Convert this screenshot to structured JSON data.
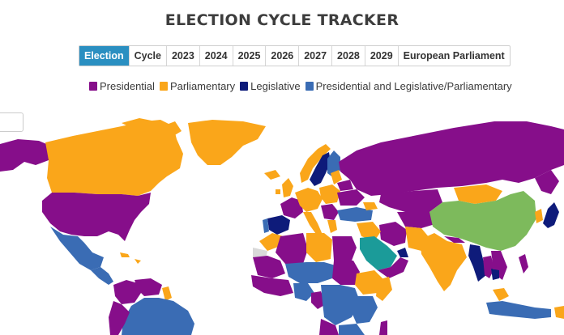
{
  "title": "ELECTION CYCLE TRACKER",
  "tabs": [
    {
      "label": "Election",
      "active": true
    },
    {
      "label": "Cycle",
      "active": false
    },
    {
      "label": "2023",
      "active": false
    },
    {
      "label": "2024",
      "active": false
    },
    {
      "label": "2025",
      "active": false
    },
    {
      "label": "2026",
      "active": false
    },
    {
      "label": "2027",
      "active": false
    },
    {
      "label": "2028",
      "active": false
    },
    {
      "label": "2029",
      "active": false
    },
    {
      "label": "European Parliament",
      "active": false
    }
  ],
  "legend": [
    {
      "label": "Presidential",
      "color": "#860e8a"
    },
    {
      "label": "Parliamentary",
      "color": "#faa61a"
    },
    {
      "label": "Legislative",
      "color": "#0e1b7a"
    },
    {
      "label": "Presidential and Legislative/Parliamentary",
      "color": "#3a6cb4"
    }
  ],
  "map_colors": {
    "presidential": "#860e8a",
    "parliamentary": "#faa61a",
    "legislative": "#0e1b7a",
    "pres_and_leg": "#3a6cb4",
    "china": "#7dba5c",
    "saudi": "#1b9b99",
    "no_data": "#d9d9d9"
  }
}
